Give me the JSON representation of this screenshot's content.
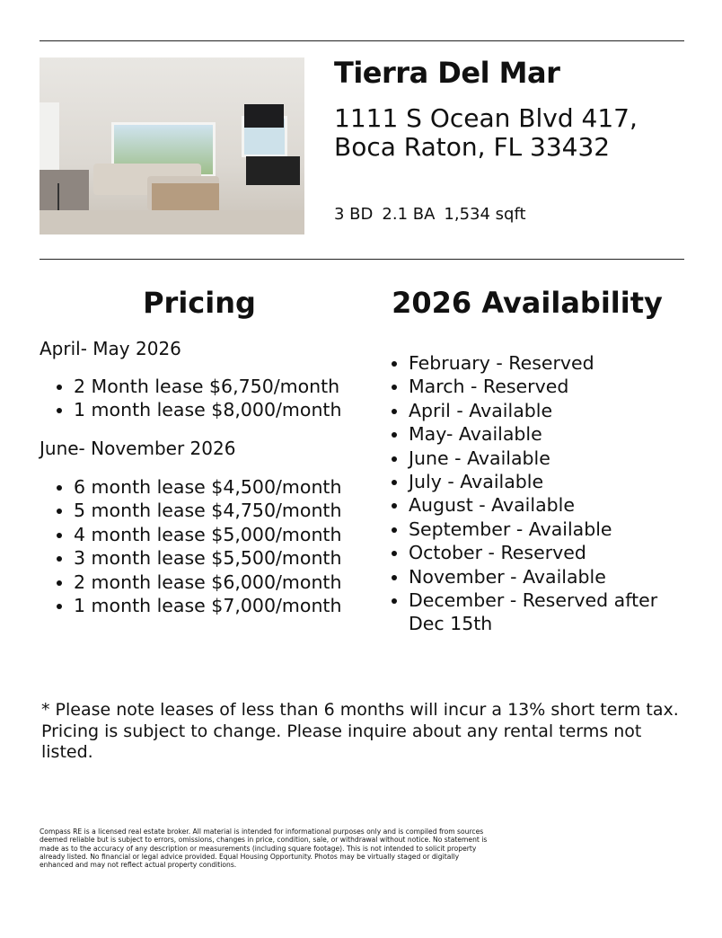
{
  "property": {
    "name": "Tierra Del Mar",
    "address": "1111 S Ocean Blvd 417, Boca Raton, FL 33432",
    "beds": "3 BD",
    "baths": "2.1 BA",
    "sqft": "1,534 sqft"
  },
  "pricing": {
    "heading": "Pricing",
    "periods": [
      {
        "label": "April- May 2026",
        "items": [
          "2 Month lease $6,750/month",
          "1 month lease $8,000/month"
        ]
      },
      {
        "label": "June- November 2026",
        "items": [
          "6 month lease $4,500/month",
          "5 month lease $4,750/month",
          "4 month lease $5,000/month",
          "3 month lease $5,500/month",
          "2 month lease $6,000/month",
          "1 month lease $7,000/month"
        ]
      }
    ]
  },
  "availability": {
    "heading": "2026 Availability",
    "items": [
      "February - Reserved",
      "March - Reserved",
      "April - Available",
      "May- Available",
      "June - Available",
      "July - Available",
      "August - Available",
      "September - Available",
      "October - Reserved",
      "November - Available",
      "December - Reserved after Dec 15th"
    ]
  },
  "note": "* Please note leases of less than 6 months will incur a 13% short term tax. Pricing is subject to change. Please inquire about any rental terms not listed.",
  "disclaimer": "Compass RE is a licensed real estate broker. All material is intended for informational purposes only and is compiled from sources deemed reliable but is subject to errors, omissions, changes in price, condition, sale, or withdrawal without notice. No statement is made as to the accuracy of any description or measurements (including square footage). This is not intended to solicit property already listed. No financial or legal advice provided. Equal Housing Opportunity. Photos may be virtually staged or digitally enhanced and may not reflect actual property conditions."
}
